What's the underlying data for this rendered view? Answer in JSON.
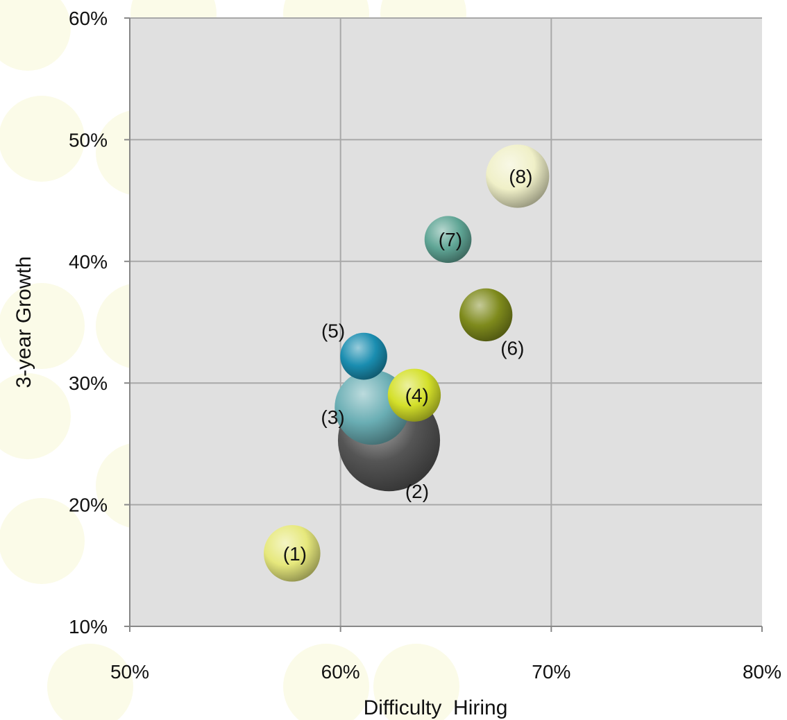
{
  "chart_data": {
    "type": "scatter",
    "subtype": "bubble",
    "title": "",
    "xlabel": "Difficulty  Hiring",
    "ylabel": "3-year Growth",
    "xlim": [
      0.5,
      0.8
    ],
    "ylim": [
      0.1,
      0.6
    ],
    "x_ticks": [
      "50%",
      "60%",
      "70%",
      "80%"
    ],
    "y_ticks": [
      "10%",
      "20%",
      "30%",
      "40%",
      "50%",
      "60%"
    ],
    "x_tick_values": [
      0.5,
      0.6,
      0.7,
      0.8
    ],
    "y_tick_values": [
      0.1,
      0.2,
      0.3,
      0.4,
      0.5,
      0.6
    ],
    "grid": true,
    "legend": "none",
    "plot_background": "#e0e0e0",
    "grid_color": "#a8a8a8",
    "points": [
      {
        "label": "(1)",
        "x": 0.577,
        "y": 0.16,
        "size": 16,
        "color": "#e6e87c",
        "label_pos": "center"
      },
      {
        "label": "(2)",
        "x": 0.623,
        "y": 0.253,
        "size": 52,
        "color": "#555555",
        "label_pos": "below-right"
      },
      {
        "label": "(3)",
        "x": 0.615,
        "y": 0.28,
        "size": 28,
        "color": "#6aaeb4",
        "label_pos": "left"
      },
      {
        "label": "(4)",
        "x": 0.635,
        "y": 0.29,
        "size": 14,
        "color": "#d4e02a",
        "label_pos": "center"
      },
      {
        "label": "(5)",
        "x": 0.611,
        "y": 0.322,
        "size": 11,
        "color": "#1a8db0",
        "label_pos": "upper-left"
      },
      {
        "label": "(6)",
        "x": 0.669,
        "y": 0.356,
        "size": 14,
        "color": "#7e8a1c",
        "label_pos": "below-right"
      },
      {
        "label": "(7)",
        "x": 0.651,
        "y": 0.418,
        "size": 11,
        "color": "#5fa595",
        "label_pos": "center"
      },
      {
        "label": "(8)",
        "x": 0.684,
        "y": 0.47,
        "size": 20,
        "color": "#f0f0c8",
        "label_pos": "center"
      }
    ]
  }
}
